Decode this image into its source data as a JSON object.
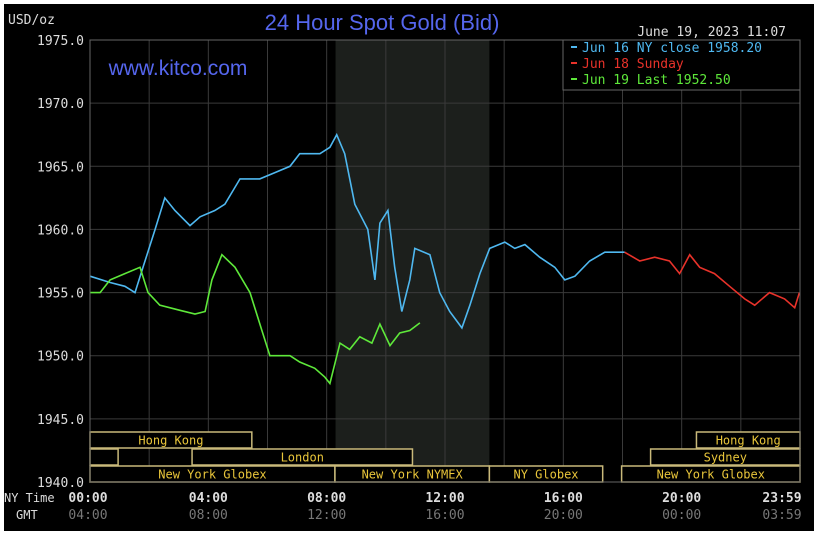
{
  "chart_data": {
    "type": "line",
    "title": "24 Hour Spot Gold (Bid)",
    "ylabel": "USD/oz",
    "watermark": "www.kitco.com",
    "timestamp": "June 19, 2023 11:07",
    "ylim": [
      1940,
      1975
    ],
    "yticks": [
      "1975.0",
      "1970.0",
      "1965.0",
      "1960.0",
      "1955.0",
      "1950.0",
      "1945.0",
      "1940.0"
    ],
    "ytick_values": [
      1975,
      1970,
      1965,
      1960,
      1955,
      1950,
      1945,
      1940
    ],
    "xlim_hours": [
      0,
      24
    ],
    "x_row_labels": {
      "ny": "NY Time",
      "gmt": "GMT"
    },
    "xticks": [
      {
        "hour": 0,
        "ny": "00:00",
        "gmt": "04:00"
      },
      {
        "hour": 4,
        "ny": "04:00",
        "gmt": "08:00"
      },
      {
        "hour": 8,
        "ny": "08:00",
        "gmt": "12:00"
      },
      {
        "hour": 12,
        "ny": "12:00",
        "gmt": "16:00"
      },
      {
        "hour": 16,
        "ny": "16:00",
        "gmt": "20:00"
      },
      {
        "hour": 20,
        "ny": "20:00",
        "gmt": "00:00"
      },
      {
        "hour": 24,
        "ny": "23:59",
        "gmt": "03:59"
      }
    ],
    "grid": true,
    "legend_position": "top-right",
    "shaded_period_hours": [
      8.3,
      13.5
    ],
    "series": [
      {
        "name": "Jun 16 NY close 1958.20",
        "color": "#4fb8f0",
        "x": [
          0,
          0.68,
          1.18,
          1.52,
          1.79,
          2.2,
          2.53,
          2.87,
          3.38,
          3.72,
          4.22,
          4.56,
          5.07,
          5.74,
          6.25,
          6.76,
          7.09,
          7.77,
          8.11,
          8.34,
          8.61,
          8.95,
          9.39,
          9.63,
          9.8,
          10.07,
          10.3,
          10.54,
          10.81,
          10.98,
          11.49,
          11.82,
          12.16,
          12.57,
          12.84,
          13.18,
          13.51,
          14.02,
          14.36,
          14.7,
          15.2,
          15.71,
          16.05,
          16.39,
          16.89,
          17.4,
          18.07
        ],
        "y": [
          1956.3,
          1955.8,
          1955.5,
          1955,
          1957,
          1960,
          1962.5,
          1961.5,
          1960.3,
          1961,
          1961.5,
          1962,
          1964,
          1964,
          1964.5,
          1965,
          1966,
          1966,
          1966.5,
          1967.5,
          1966,
          1962,
          1960,
          1956,
          1960.5,
          1961.5,
          1957,
          1953.5,
          1956,
          1958.5,
          1958,
          1955,
          1953.5,
          1952.2,
          1954,
          1956.5,
          1958.5,
          1959,
          1958.5,
          1958.8,
          1957.8,
          1957,
          1956,
          1956.3,
          1957.5,
          1958.2,
          1958.2
        ]
      },
      {
        "name": "Jun 18 Sunday",
        "color": "#e8322a",
        "x": [
          18.07,
          18.58,
          19.09,
          19.59,
          19.93,
          20.27,
          20.61,
          21.11,
          21.62,
          22.13,
          22.47,
          22.97,
          23.48,
          23.82,
          23.98
        ],
        "y": [
          1958.2,
          1957.5,
          1957.8,
          1957.5,
          1956.5,
          1958,
          1957,
          1956.5,
          1955.5,
          1954.5,
          1954,
          1955,
          1954.5,
          1953.8,
          1955
        ]
      },
      {
        "name": "Jun 19 Last 1952.50",
        "color": "#5ee83a",
        "x": [
          0,
          0.34,
          0.68,
          1.18,
          1.69,
          1.96,
          2.36,
          3.04,
          3.55,
          3.89,
          4.12,
          4.46,
          4.9,
          5.41,
          5.81,
          6.08,
          6.76,
          7.09,
          7.6,
          7.94,
          8.11,
          8.45,
          8.78,
          9.12,
          9.53,
          9.8,
          10.14,
          10.47,
          10.81,
          11.15
        ],
        "y": [
          1955,
          1955,
          1956,
          1956.5,
          1957,
          1955,
          1954,
          1953.6,
          1953.3,
          1953.5,
          1956,
          1958,
          1957,
          1955,
          1952,
          1950,
          1950,
          1949.5,
          1949,
          1948.3,
          1947.8,
          1951,
          1950.5,
          1951.5,
          1951,
          1952.5,
          1950.8,
          1951.8,
          1952,
          1952.6
        ]
      }
    ],
    "sessions": [
      {
        "label": "Hong Kong",
        "row": 0,
        "start": 0,
        "end": 5.47
      },
      {
        "label": "Hong Kong",
        "row": 0,
        "start": 20.5,
        "end": 24
      },
      {
        "label": "",
        "row": 1,
        "start": 0,
        "end": 0.95
      },
      {
        "label": "London",
        "row": 1,
        "start": 3.45,
        "end": 10.9
      },
      {
        "label": "Sydney",
        "row": 1,
        "start": 18.95,
        "end": 24
      },
      {
        "label": "New York Globex",
        "row": 2,
        "start": 0,
        "end": 8.28
      },
      {
        "label": "New York NYMEX",
        "row": 2,
        "start": 8.28,
        "end": 13.5
      },
      {
        "label": "NY Globex",
        "row": 2,
        "start": 13.5,
        "end": 17.33
      },
      {
        "label": "New York Globex",
        "row": 2,
        "start": 17.97,
        "end": 24
      }
    ],
    "colors": {
      "title": "#5566ee",
      "session_border": "#c9b97a",
      "session_text": "#e8c53a",
      "grid": "#3a3a3a"
    }
  }
}
